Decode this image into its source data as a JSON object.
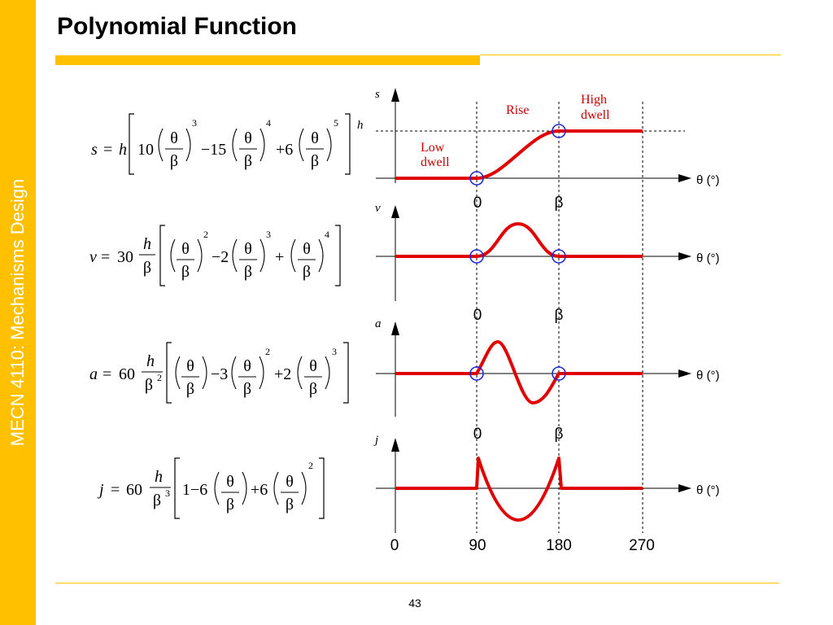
{
  "sidebar": {
    "course": "MECN 4110: Mechanisms Design"
  },
  "slide": {
    "title": "Polynomial Function",
    "page_number": "43"
  },
  "colors": {
    "accent": "#FFC000",
    "curve": "#E00000",
    "marker": "#1E2BD6"
  },
  "equations": {
    "s": {
      "lhs": "s",
      "eq": "=",
      "h": "h",
      "c1": "10",
      "m1": "−15",
      "c2": "+6",
      "e1": "3",
      "e2": "4",
      "e3": "5",
      "th": "θ",
      "be": "β"
    },
    "v": {
      "lhs": "v",
      "eq": "=",
      "c0": "30",
      "h": "h",
      "d": "β",
      "m1": "−2",
      "c2": "+",
      "e1": "2",
      "e2": "3",
      "e3": "4",
      "th": "θ",
      "be": "β"
    },
    "a": {
      "lhs": "a",
      "eq": "=",
      "c0": "60",
      "h": "h",
      "d": "β",
      "dexp": "2",
      "m1": "−3",
      "c2": "+2",
      "e2": "2",
      "e3": "3",
      "th": "θ",
      "be": "β"
    },
    "j": {
      "lhs": "j",
      "eq": "=",
      "c0": "60",
      "h": "h",
      "d": "β",
      "dexp": "3",
      "one": "1",
      "m1": "−6",
      "c2": "+6",
      "e3": "2",
      "th": "θ",
      "be": "β"
    }
  },
  "plots": {
    "axis_label": "θ (°)",
    "s": {
      "ylabel": "s",
      "h_label": "h",
      "marks": [
        "0",
        "β"
      ],
      "regions": {
        "low1": "Low",
        "low2": "dwell",
        "rise": "Rise",
        "high1": "High",
        "high2": "dwell"
      }
    },
    "v": {
      "ylabel": "v",
      "marks": [
        "0",
        "β"
      ]
    },
    "a": {
      "ylabel": "a",
      "marks": [
        "0",
        "β"
      ]
    },
    "j": {
      "ylabel": "j",
      "ticks": [
        "0",
        "90",
        "180",
        "270"
      ]
    }
  }
}
